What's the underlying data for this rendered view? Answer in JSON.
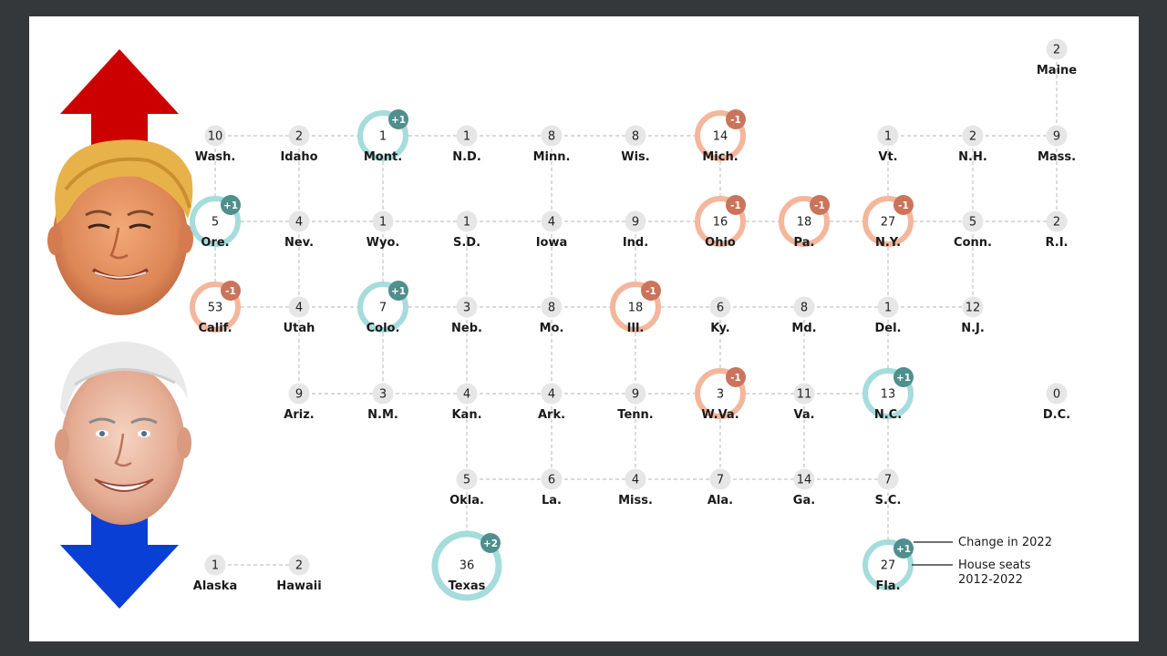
{
  "colors": {
    "gain_ring": "#a5dcdc",
    "gain_badge": "#4f8f8d",
    "loss_ring": "#f4b69c",
    "loss_badge": "#c9745b",
    "node_fill": "#e6e6e6",
    "grid_line": "#c4c4c4",
    "up_arrow": "#cc0000",
    "down_arrow": "#0a3fd6"
  },
  "states": [
    {
      "abbr": "Maine",
      "seats": "2"
    },
    {
      "abbr": "Wash.",
      "seats": "10"
    },
    {
      "abbr": "Idaho",
      "seats": "2"
    },
    {
      "abbr": "Mont.",
      "seats": "1",
      "change": "+1"
    },
    {
      "abbr": "N.D.",
      "seats": "1"
    },
    {
      "abbr": "Minn.",
      "seats": "8"
    },
    {
      "abbr": "Wis.",
      "seats": "8"
    },
    {
      "abbr": "Mich.",
      "seats": "14",
      "change": "-1"
    },
    {
      "abbr": "Vt.",
      "seats": "1"
    },
    {
      "abbr": "N.H.",
      "seats": "2"
    },
    {
      "abbr": "Mass.",
      "seats": "9"
    },
    {
      "abbr": "Ore.",
      "seats": "5",
      "change": "+1"
    },
    {
      "abbr": "Nev.",
      "seats": "4"
    },
    {
      "abbr": "Wyo.",
      "seats": "1"
    },
    {
      "abbr": "S.D.",
      "seats": "1"
    },
    {
      "abbr": "Iowa",
      "seats": "4"
    },
    {
      "abbr": "Ind.",
      "seats": "9"
    },
    {
      "abbr": "Ohio",
      "seats": "16",
      "change": "-1"
    },
    {
      "abbr": "Pa.",
      "seats": "18",
      "change": "-1"
    },
    {
      "abbr": "N.Y.",
      "seats": "27",
      "change": "-1"
    },
    {
      "abbr": "Conn.",
      "seats": "5"
    },
    {
      "abbr": "R.I.",
      "seats": "2"
    },
    {
      "abbr": "Calif.",
      "seats": "53",
      "change": "-1"
    },
    {
      "abbr": "Utah",
      "seats": "4"
    },
    {
      "abbr": "Colo.",
      "seats": "7",
      "change": "+1"
    },
    {
      "abbr": "Neb.",
      "seats": "3"
    },
    {
      "abbr": "Mo.",
      "seats": "8"
    },
    {
      "abbr": "Ill.",
      "seats": "18",
      "change": "-1"
    },
    {
      "abbr": "Ky.",
      "seats": "6"
    },
    {
      "abbr": "Md.",
      "seats": "8"
    },
    {
      "abbr": "Del.",
      "seats": "1"
    },
    {
      "abbr": "N.J.",
      "seats": "12"
    },
    {
      "abbr": "Ariz.",
      "seats": "9"
    },
    {
      "abbr": "N.M.",
      "seats": "3"
    },
    {
      "abbr": "Kan.",
      "seats": "4"
    },
    {
      "abbr": "Ark.",
      "seats": "4"
    },
    {
      "abbr": "Tenn.",
      "seats": "9"
    },
    {
      "abbr": "W.Va.",
      "seats": "3",
      "change": "-1"
    },
    {
      "abbr": "Va.",
      "seats": "11"
    },
    {
      "abbr": "N.C.",
      "seats": "13",
      "change": "+1"
    },
    {
      "abbr": "D.C.",
      "seats": "0"
    },
    {
      "abbr": "Okla.",
      "seats": "5"
    },
    {
      "abbr": "La.",
      "seats": "6"
    },
    {
      "abbr": "Miss.",
      "seats": "4"
    },
    {
      "abbr": "Ala.",
      "seats": "7"
    },
    {
      "abbr": "Ga.",
      "seats": "14"
    },
    {
      "abbr": "S.C.",
      "seats": "7"
    },
    {
      "abbr": "Alaska",
      "seats": "1"
    },
    {
      "abbr": "Hawaii",
      "seats": "2"
    },
    {
      "abbr": "Texas",
      "seats": "36",
      "change": "+2"
    },
    {
      "abbr": "Fla.",
      "seats": "27",
      "change": "+1"
    }
  ],
  "legend": {
    "change_label": "Change in 2022",
    "seats_label_line1": "House seats",
    "seats_label_line2": "2012-2022"
  },
  "portraits": {
    "top": "trump-face",
    "bottom": "biden-face"
  },
  "arrows": {
    "top": "up-arrow",
    "bottom": "down-arrow"
  }
}
